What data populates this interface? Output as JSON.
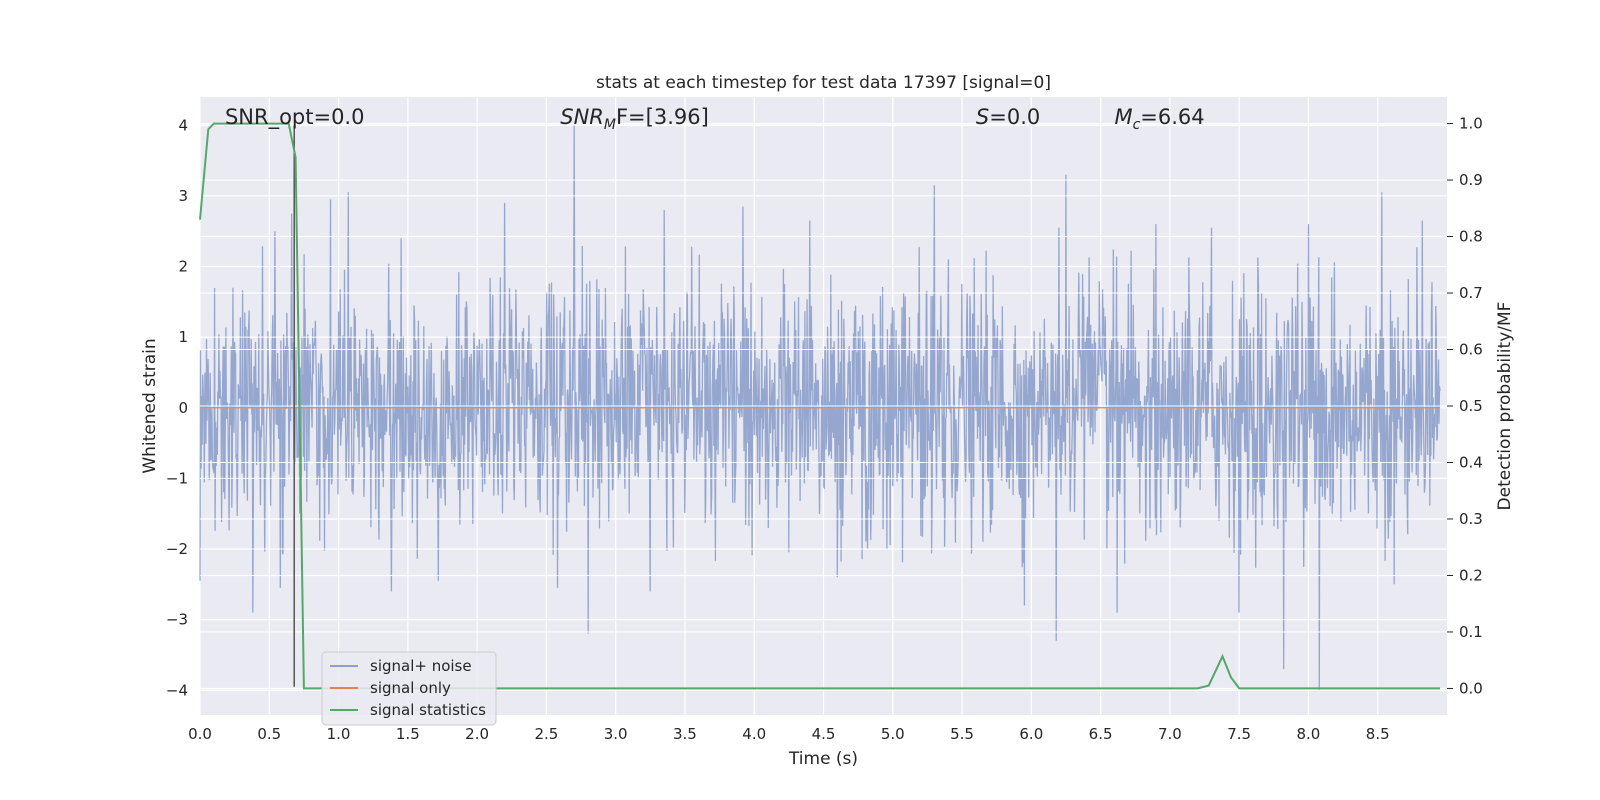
{
  "chart_data": {
    "type": "line",
    "title": "stats at each timestep for test data 17397 [signal=0]",
    "xlabel": "Time (s)",
    "ylabel": "Whitened strain",
    "y2label": "Detection probability/MF",
    "xlim": [
      0.0,
      9.0
    ],
    "ylim": [
      -4.35,
      4.4
    ],
    "y2lim": [
      -0.047,
      1.047
    ],
    "x_ticks": [
      "0.0",
      "0.5",
      "1.0",
      "1.5",
      "2.0",
      "2.5",
      "3.0",
      "3.5",
      "4.0",
      "4.5",
      "5.0",
      "5.5",
      "6.0",
      "6.5",
      "7.0",
      "7.5",
      "8.0",
      "8.5"
    ],
    "y_ticks": [
      "4",
      "3",
      "2",
      "1",
      "0",
      "−1",
      "−2",
      "−3",
      "−4"
    ],
    "y2_ticks": [
      "1.0",
      "0.9",
      "0.8",
      "0.7",
      "0.6",
      "0.5",
      "0.4",
      "0.3",
      "0.2",
      "0.1",
      "0.0"
    ],
    "grid": true,
    "legend_position": "lower-left",
    "colors": {
      "background": "#eaeaf2",
      "grid": "#ffffff",
      "noise": "#8da0cb",
      "signal": "#dd8452",
      "stats": "#55a868",
      "marker": "#555555"
    },
    "series": [
      {
        "name": "signal+ noise",
        "axis": "left",
        "description_level": "dense noise, core band roughly −1.6 to 1.6, peaks up to about 4",
        "spikes_up": [
          [
            0.54,
            2.5
          ],
          [
            0.66,
            2.75
          ],
          [
            0.94,
            2.95
          ],
          [
            1.07,
            3.05
          ],
          [
            1.45,
            2.4
          ],
          [
            2.2,
            2.9
          ],
          [
            2.58,
            3.45
          ],
          [
            2.7,
            4.0
          ],
          [
            3.35,
            2.8
          ],
          [
            3.92,
            2.85
          ],
          [
            4.4,
            2.65
          ],
          [
            5.3,
            3.15
          ],
          [
            6.2,
            2.55
          ],
          [
            6.25,
            3.3
          ],
          [
            6.9,
            2.6
          ],
          [
            7.3,
            2.55
          ],
          [
            8.0,
            2.6
          ],
          [
            8.53,
            3.05
          ],
          [
            8.82,
            2.65
          ]
        ],
        "spikes_down": [
          [
            0.0,
            -2.45
          ],
          [
            0.38,
            -2.9
          ],
          [
            0.58,
            -2.55
          ],
          [
            1.38,
            -2.6
          ],
          [
            1.72,
            -2.45
          ],
          [
            2.58,
            -2.55
          ],
          [
            2.8,
            -3.2
          ],
          [
            3.25,
            -2.6
          ],
          [
            4.6,
            -2.4
          ],
          [
            5.95,
            -2.8
          ],
          [
            6.18,
            -3.3
          ],
          [
            6.62,
            -2.9
          ],
          [
            7.5,
            -2.9
          ],
          [
            7.82,
            -3.7
          ],
          [
            8.08,
            -4.0
          ],
          [
            8.62,
            -2.5
          ]
        ]
      },
      {
        "name": "signal only",
        "axis": "left",
        "x": [
          0.0,
          8.95
        ],
        "y": [
          0.0,
          0.0
        ]
      },
      {
        "name": "signal statistics",
        "axis": "right",
        "x": [
          0.0,
          0.06,
          0.1,
          0.2,
          0.3,
          0.4,
          0.5,
          0.6,
          0.64,
          0.69,
          0.75,
          0.8,
          1.0,
          2.0,
          3.0,
          4.0,
          5.0,
          6.0,
          7.0,
          7.2,
          7.28,
          7.38,
          7.44,
          7.5,
          7.6,
          8.0,
          8.5,
          8.95
        ],
        "y": [
          0.83,
          0.99,
          1.0,
          1.0,
          1.0,
          1.0,
          1.0,
          1.0,
          1.0,
          0.94,
          0.0,
          0.0,
          0.0,
          0.0,
          0.0,
          0.0,
          0.0,
          0.0,
          0.0,
          0.0,
          0.005,
          0.057,
          0.02,
          0.0,
          0.0,
          0.0,
          0.0,
          0.0
        ]
      }
    ],
    "marker_line": {
      "x": 0.68,
      "y_from": -3.95,
      "y_to": 4.0
    },
    "annotations": [
      {
        "text": "SNR_opt=0.0",
        "at_x": 0.18
      },
      {
        "text": "SNR",
        "sub": "M",
        "tail": "F=[3.96]",
        "italic": true,
        "at_x": 2.6
      },
      {
        "text": "S",
        "tail": "=0.0",
        "italic": true,
        "at_x": 5.6
      },
      {
        "text": "M",
        "sub": "c",
        "tail": "=6.64",
        "italic": true,
        "at_x": 6.6
      }
    ]
  }
}
